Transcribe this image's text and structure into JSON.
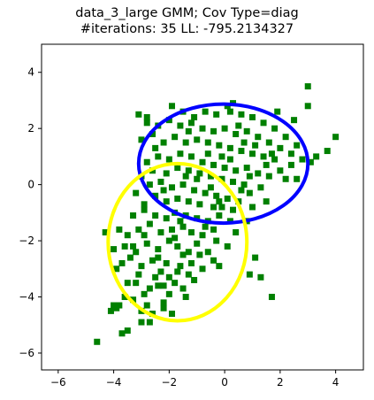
{
  "chart_data": {
    "type": "scatter",
    "title_line1": "data_3_large GMM; Cov Type=diag",
    "title_line2": "#iterations: 35 LL: -795.2134327",
    "xlabel": "",
    "ylabel": "",
    "xlim": [
      -6.6,
      5.0
    ],
    "ylim": [
      -6.6,
      5.0
    ],
    "x_ticks": [
      -6,
      -4,
      -2,
      0,
      2,
      4
    ],
    "y_ticks": [
      -6,
      -4,
      -2,
      0,
      2,
      4
    ],
    "x_tick_labels": [
      "−6",
      "−4",
      "−2",
      "0",
      "2",
      "4"
    ],
    "y_tick_labels": [
      "−6",
      "−4",
      "−2",
      "0",
      "2",
      "4"
    ],
    "grid": false,
    "marker_color": "#008000",
    "marker_shape": "square",
    "ellipses": [
      {
        "color": "#0000ff",
        "center": [
          -0.05,
          0.75
        ],
        "rx": 3.05,
        "ry": 2.12
      },
      {
        "color": "#ffff00",
        "center": [
          -1.7,
          -2.05
        ],
        "rx": 2.5,
        "ry": 2.8
      }
    ],
    "points": [
      [
        -4.6,
        -5.6
      ],
      [
        -3.7,
        -5.3
      ],
      [
        -3.5,
        -5.2
      ],
      [
        -4.1,
        -4.5
      ],
      [
        -3.9,
        -4.4
      ],
      [
        -4.0,
        -4.3
      ],
      [
        -3.6,
        -4.0
      ],
      [
        -3.3,
        -4.1
      ],
      [
        -3.0,
        -4.5
      ],
      [
        -2.8,
        -4.3
      ],
      [
        -2.6,
        -4.6
      ],
      [
        -2.9,
        -3.9
      ],
      [
        -2.2,
        -4.2
      ],
      [
        -2.0,
        -3.9
      ],
      [
        -2.4,
        -3.6
      ],
      [
        -2.7,
        -3.7
      ],
      [
        -3.2,
        -3.5
      ],
      [
        -3.5,
        -3.5
      ],
      [
        -3.1,
        -3.2
      ],
      [
        -2.5,
        -3.3
      ],
      [
        -2.3,
        -3.1
      ],
      [
        -2.0,
        -3.3
      ],
      [
        -1.8,
        -3.5
      ],
      [
        -1.5,
        -3.7
      ],
      [
        -1.3,
        -3.2
      ],
      [
        -1.1,
        -3.4
      ],
      [
        -0.8,
        -3.0
      ],
      [
        -1.6,
        -2.9
      ],
      [
        -2.1,
        -2.8
      ],
      [
        -2.6,
        -2.7
      ],
      [
        -3.0,
        -2.9
      ],
      [
        -3.4,
        -2.6
      ],
      [
        -3.7,
        -2.8
      ],
      [
        -3.9,
        -3.0
      ],
      [
        -4.0,
        -2.3
      ],
      [
        -3.6,
        -2.2
      ],
      [
        -3.2,
        -2.4
      ],
      [
        -2.8,
        -2.1
      ],
      [
        -2.4,
        -2.3
      ],
      [
        -2.0,
        -2.0
      ],
      [
        -1.7,
        -2.2
      ],
      [
        -1.3,
        -2.4
      ],
      [
        -1.0,
        -2.1
      ],
      [
        -0.6,
        -2.4
      ],
      [
        -0.4,
        -2.7
      ],
      [
        -0.8,
        -1.8
      ],
      [
        -1.2,
        -1.7
      ],
      [
        -1.5,
        -1.5
      ],
      [
        -1.9,
        -1.6
      ],
      [
        -2.3,
        -1.7
      ],
      [
        -2.7,
        -1.4
      ],
      [
        -3.1,
        -1.6
      ],
      [
        -3.5,
        -1.8
      ],
      [
        -3.8,
        -1.6
      ],
      [
        -4.3,
        -1.7
      ],
      [
        -3.3,
        -1.1
      ],
      [
        -2.9,
        -0.9
      ],
      [
        -2.5,
        -1.1
      ],
      [
        -2.1,
        -1.2
      ],
      [
        -1.8,
        -1.0
      ],
      [
        -1.4,
        -1.1
      ],
      [
        -1.0,
        -1.2
      ],
      [
        -0.6,
        -1.3
      ],
      [
        -0.2,
        -1.1
      ],
      [
        0.2,
        -1.3
      ],
      [
        -0.4,
        -0.8
      ],
      [
        -0.9,
        -0.7
      ],
      [
        -1.3,
        -0.6
      ],
      [
        -1.7,
        -0.5
      ],
      [
        -2.1,
        -0.6
      ],
      [
        -2.5,
        -0.4
      ],
      [
        -2.9,
        -0.7
      ],
      [
        -3.2,
        -0.3
      ],
      [
        -2.7,
        0.0
      ],
      [
        -2.3,
        0.1
      ],
      [
        -1.9,
        -0.1
      ],
      [
        -1.5,
        0.0
      ],
      [
        -1.1,
        -0.2
      ],
      [
        -0.7,
        -0.3
      ],
      [
        -0.3,
        -0.4
      ],
      [
        0.1,
        -0.5
      ],
      [
        0.5,
        -0.6
      ],
      [
        0.9,
        -0.3
      ],
      [
        1.3,
        -0.1
      ],
      [
        0.7,
        0.0
      ],
      [
        0.3,
        0.1
      ],
      [
        -0.1,
        0.2
      ],
      [
        -0.5,
        0.3
      ],
      [
        -0.9,
        0.4
      ],
      [
        -1.3,
        0.5
      ],
      [
        -1.7,
        0.6
      ],
      [
        -2.1,
        0.4
      ],
      [
        -2.6,
        0.5
      ],
      [
        -3.0,
        0.3
      ],
      [
        -2.8,
        0.8
      ],
      [
        -2.4,
        1.0
      ],
      [
        -2.0,
        0.9
      ],
      [
        -1.6,
        1.1
      ],
      [
        -1.2,
        1.0
      ],
      [
        -0.8,
        0.8
      ],
      [
        -0.4,
        0.7
      ],
      [
        0.0,
        0.6
      ],
      [
        0.4,
        0.5
      ],
      [
        0.8,
        0.6
      ],
      [
        1.2,
        0.4
      ],
      [
        1.6,
        0.3
      ],
      [
        2.0,
        0.5
      ],
      [
        2.4,
        0.7
      ],
      [
        2.8,
        0.9
      ],
      [
        3.1,
        0.8
      ],
      [
        1.8,
        0.9
      ],
      [
        1.4,
        1.0
      ],
      [
        1.0,
        1.1
      ],
      [
        0.6,
        1.2
      ],
      [
        0.2,
        1.3
      ],
      [
        -0.2,
        1.4
      ],
      [
        -0.6,
        1.5
      ],
      [
        -1.0,
        1.6
      ],
      [
        -1.4,
        1.5
      ],
      [
        -1.8,
        1.7
      ],
      [
        -2.2,
        1.5
      ],
      [
        -2.6,
        1.8
      ],
      [
        -3.0,
        1.6
      ],
      [
        -2.8,
        2.2
      ],
      [
        -2.4,
        2.1
      ],
      [
        -2.0,
        2.3
      ],
      [
        -1.6,
        2.1
      ],
      [
        -1.2,
        2.2
      ],
      [
        -0.8,
        2.0
      ],
      [
        -0.4,
        1.9
      ],
      [
        0.0,
        2.0
      ],
      [
        0.4,
        1.8
      ],
      [
        0.8,
        1.9
      ],
      [
        1.2,
        1.7
      ],
      [
        1.6,
        1.5
      ],
      [
        2.0,
        1.3
      ],
      [
        2.4,
        1.1
      ],
      [
        2.2,
        1.7
      ],
      [
        1.8,
        2.0
      ],
      [
        1.4,
        2.2
      ],
      [
        1.0,
        2.4
      ],
      [
        0.6,
        2.5
      ],
      [
        0.2,
        2.6
      ],
      [
        -0.3,
        2.5
      ],
      [
        -0.7,
        2.6
      ],
      [
        -1.1,
        2.4
      ],
      [
        -1.5,
        2.6
      ],
      [
        -1.9,
        2.8
      ],
      [
        -3.1,
        2.5
      ],
      [
        -2.8,
        2.4
      ],
      [
        0.3,
        2.9
      ],
      [
        0.1,
        2.8
      ],
      [
        1.9,
        2.6
      ],
      [
        3.0,
        3.5
      ],
      [
        3.0,
        2.8
      ],
      [
        3.7,
        1.2
      ],
      [
        4.0,
        1.7
      ],
      [
        3.3,
        1.0
      ],
      [
        2.6,
        0.2
      ],
      [
        1.5,
        -0.6
      ],
      [
        1.0,
        -0.8
      ],
      [
        0.8,
        -1.3
      ],
      [
        1.1,
        -2.6
      ],
      [
        0.9,
        -3.2
      ],
      [
        1.3,
        -3.3
      ],
      [
        1.7,
        -4.0
      ],
      [
        -0.2,
        -2.9
      ],
      [
        0.1,
        -2.2
      ],
      [
        -0.3,
        -2.0
      ],
      [
        0.4,
        -1.7
      ],
      [
        -1.4,
        -4.0
      ],
      [
        -1.9,
        -4.6
      ],
      [
        -2.7,
        -4.9
      ],
      [
        -3.0,
        -4.9
      ],
      [
        -2.2,
        -4.4
      ],
      [
        -1.7,
        -3.1
      ],
      [
        -2.4,
        -2.6
      ],
      [
        -1.2,
        -2.8
      ],
      [
        -0.9,
        -2.5
      ],
      [
        -2.9,
        -1.8
      ],
      [
        -1.6,
        -1.3
      ],
      [
        -0.4,
        -1.6
      ],
      [
        -0.1,
        -0.8
      ],
      [
        0.3,
        -0.9
      ],
      [
        -1.0,
        0.2
      ],
      [
        -1.4,
        0.3
      ],
      [
        -2.2,
        -0.2
      ],
      [
        -0.6,
        1.1
      ],
      [
        0.9,
        0.3
      ],
      [
        1.5,
        0.7
      ],
      [
        2.2,
        0.2
      ],
      [
        2.6,
        1.4
      ],
      [
        0.5,
        2.1
      ],
      [
        -0.1,
        1.0
      ],
      [
        -3.3,
        -2.2
      ],
      [
        -3.8,
        -4.3
      ],
      [
        -1.8,
        -1.9
      ],
      [
        -0.5,
        -0.1
      ],
      [
        0.6,
        -0.2
      ],
      [
        1.1,
        1.4
      ],
      [
        -2.5,
        1.3
      ],
      [
        -1.3,
        1.9
      ],
      [
        0.7,
        1.5
      ],
      [
        -2.2,
        -3.6
      ],
      [
        -1.5,
        -2.5
      ],
      [
        -0.7,
        -1.5
      ],
      [
        -0.2,
        -0.6
      ],
      [
        0.2,
        0.9
      ],
      [
        1.7,
        1.1
      ],
      [
        2.5,
        2.3
      ]
    ]
  }
}
